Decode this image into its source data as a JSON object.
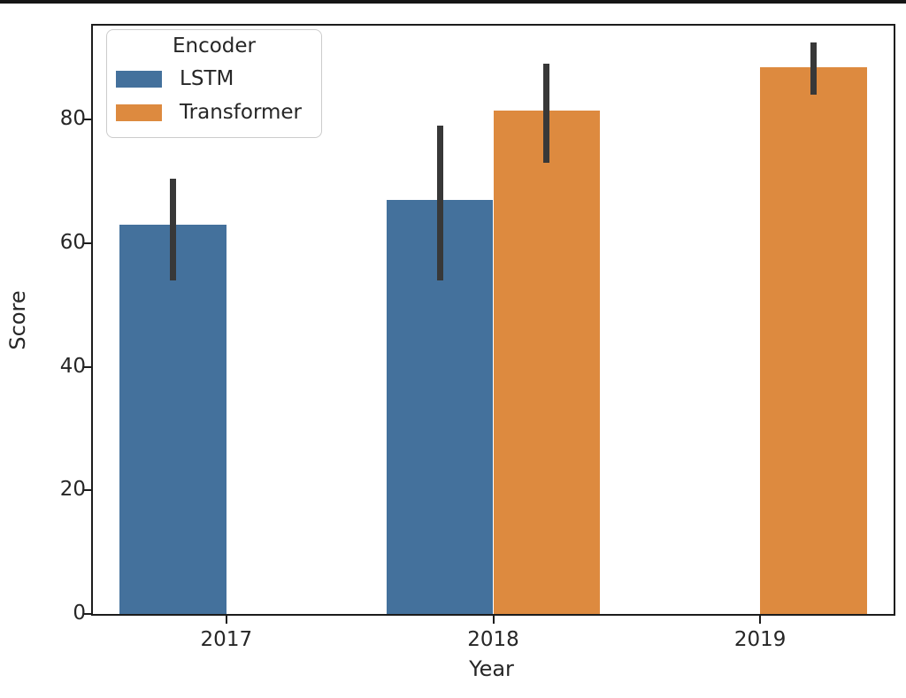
{
  "chart_data": {
    "type": "bar",
    "title": "",
    "xlabel": "Year",
    "ylabel": "Score",
    "categories": [
      "2017",
      "2018",
      "2019"
    ],
    "series": [
      {
        "name": "LSTM",
        "color": "#44719c",
        "values": [
          63,
          67,
          null
        ],
        "ci_low": [
          54,
          54,
          null
        ],
        "ci_high": [
          70.5,
          79,
          null
        ]
      },
      {
        "name": "Transformer",
        "color": "#dd8a3f",
        "values": [
          null,
          81.5,
          88.5
        ],
        "ci_low": [
          null,
          73,
          84
        ],
        "ci_high": [
          null,
          89,
          92.5
        ]
      }
    ],
    "ylim": [
      0,
      95.2
    ],
    "yticks": [
      0,
      20,
      40,
      60,
      80
    ],
    "legend_title": "Encoder",
    "legend_position": "upper left",
    "error_bar_color": "#383838",
    "grid": false,
    "group_width": 0.8
  }
}
